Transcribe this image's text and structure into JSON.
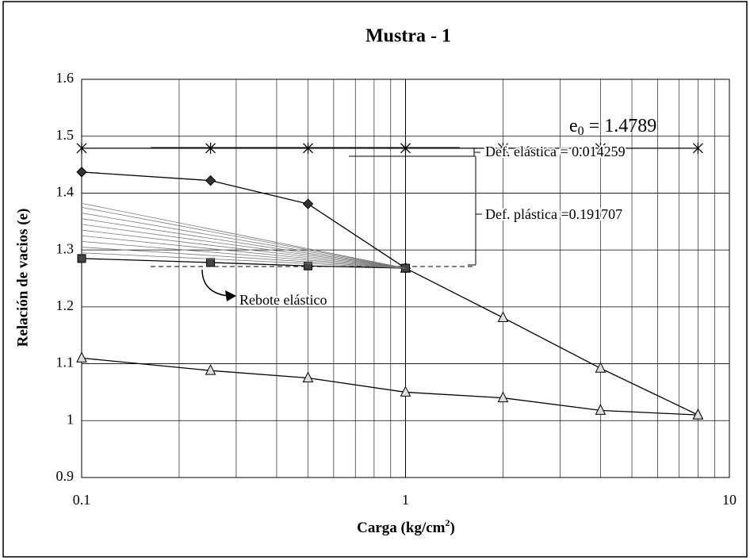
{
  "chart_data": {
    "type": "scatter",
    "title": "Mustra - 1",
    "y_label": "Relación de vacios (e)",
    "x_label": {
      "text": "Carga (kg/cm",
      "sup": "2",
      "end": ")"
    },
    "x_log": true,
    "grid": true,
    "minor_xgrid": true,
    "xlim": [
      0.1,
      10
    ],
    "xticks": [
      0.1,
      1,
      10
    ],
    "ylim": [
      0.9,
      1.6
    ],
    "yticks": [
      0.9,
      1,
      1.1,
      1.2,
      1.3,
      1.4,
      1.5,
      1.6
    ],
    "annotations": [
      {
        "text": "e",
        "sub": "0",
        "rest": " = 1.4789"
      },
      {
        "text": "Def. elástica = 0.014259"
      },
      {
        "text": "Def. plástica =0.191707"
      },
      {
        "text": "Rebote elástico"
      }
    ],
    "series": [
      {
        "color": "#000000",
        "marker": "star",
        "x": [
          0.1,
          0.25,
          0.5,
          1,
          2,
          4,
          8
        ],
        "values": [
          1.4789,
          1.4789,
          1.4789,
          1.4789,
          1.4789,
          1.4789,
          1.4789
        ]
      },
      {
        "color": "#000000",
        "marker": "diamond",
        "x": [
          0.1,
          0.25,
          0.5,
          1
        ],
        "values": [
          1.437,
          1.422,
          1.381,
          1.268
        ]
      },
      {
        "color": "#000000",
        "marker": "triangle",
        "x": [
          1,
          2,
          4,
          8
        ],
        "values": [
          1.268,
          1.181,
          1.092,
          1.01
        ]
      },
      {
        "color": "#000000",
        "marker": "triangle",
        "x": [
          0.1,
          0.25,
          0.5,
          1,
          2,
          4,
          8
        ],
        "values": [
          1.11,
          1.088,
          1.075,
          1.05,
          1.04,
          1.018,
          1.01
        ]
      },
      {
        "color": "#000000",
        "marker": "square",
        "x": [
          0.1,
          0.25,
          0.5,
          1
        ],
        "values": [
          1.285,
          1.278,
          1.272,
          1.268
        ]
      },
      {
        "color": "#777777",
        "marker": "none",
        "x": [
          0.1,
          1
        ],
        "values": [
          1.295,
          1.268
        ]
      },
      {
        "color": "#777777",
        "marker": "none",
        "x": [
          0.1,
          1
        ],
        "values": [
          1.305,
          1.268
        ]
      },
      {
        "color": "#777777",
        "marker": "none",
        "x": [
          0.1,
          1
        ],
        "values": [
          1.315,
          1.268
        ]
      },
      {
        "color": "#777777",
        "marker": "none",
        "x": [
          0.1,
          1
        ],
        "values": [
          1.325,
          1.268
        ]
      },
      {
        "color": "#777777",
        "marker": "none",
        "x": [
          0.1,
          1
        ],
        "values": [
          1.335,
          1.268
        ]
      },
      {
        "color": "#777777",
        "marker": "none",
        "x": [
          0.1,
          1
        ],
        "values": [
          1.345,
          1.268
        ]
      },
      {
        "color": "#777777",
        "marker": "none",
        "x": [
          0.1,
          1
        ],
        "values": [
          1.355,
          1.268
        ]
      },
      {
        "color": "#777777",
        "marker": "none",
        "x": [
          0.1,
          1
        ],
        "values": [
          1.365,
          1.268
        ]
      },
      {
        "color": "#777777",
        "marker": "none",
        "x": [
          0.1,
          1
        ],
        "values": [
          1.375,
          1.268
        ]
      },
      {
        "color": "#777777",
        "marker": "none",
        "x": [
          0.1,
          1
        ],
        "values": [
          1.382,
          1.268
        ]
      }
    ]
  }
}
